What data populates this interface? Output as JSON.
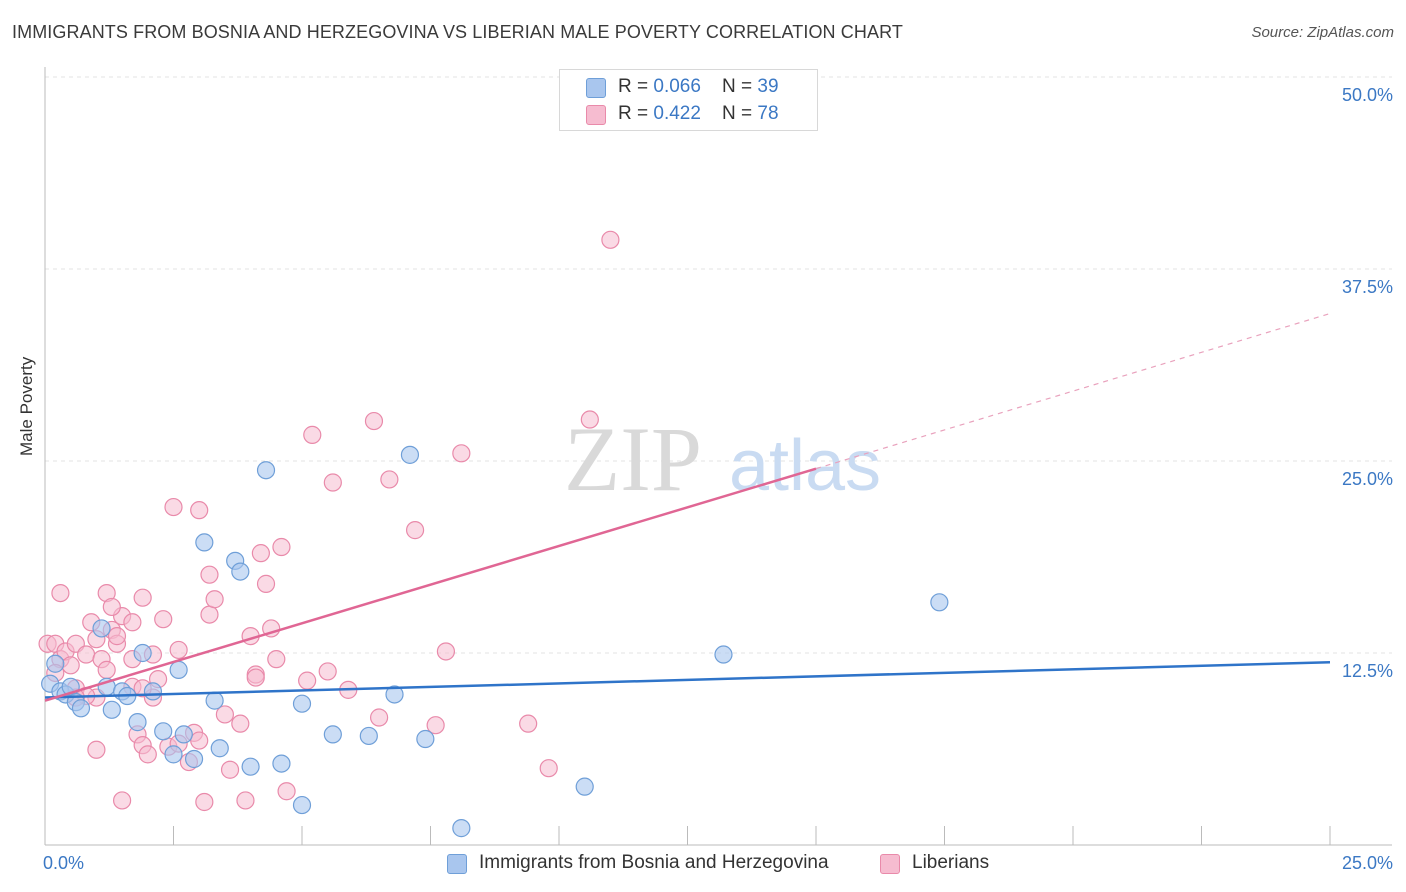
{
  "title": "IMMIGRANTS FROM BOSNIA AND HERZEGOVINA VS LIBERIAN MALE POVERTY CORRELATION CHART",
  "source": "Source: ZipAtlas.com",
  "watermark": {
    "zip": "ZIP",
    "atlas": "atlas"
  },
  "colors": {
    "blue_fill": "#a9c6ee",
    "blue_stroke": "#6f9fd8",
    "blue_line": "#2f74c9",
    "pink_fill": "#f6bcd0",
    "pink_stroke": "#e98aaa",
    "pink_line": "#e06694",
    "axis_label": "#3b78c4"
  },
  "legend": {
    "blue": {
      "r_label": "R = ",
      "r_value": "0.066",
      "n_label": "N = ",
      "n_value": "39"
    },
    "pink": {
      "r_label": "R = ",
      "r_value": "0.422",
      "n_label": "N = ",
      "n_value": "78"
    }
  },
  "chart_data": {
    "type": "scatter",
    "title": "IMMIGRANTS FROM BOSNIA AND HERZEGOVINA VS LIBERIAN MALE POVERTY CORRELATION CHART",
    "xlabel": "",
    "ylabel": "Male Poverty",
    "xlim": [
      0,
      25
    ],
    "ylim": [
      0,
      50
    ],
    "x_tick_labels": [
      "0.0%",
      "25.0%"
    ],
    "y_tick_labels": [
      "12.5%",
      "25.0%",
      "37.5%",
      "50.0%"
    ],
    "y_ticks": [
      12.5,
      25.0,
      37.5,
      50.0
    ],
    "grid": true,
    "series": [
      {
        "name": "Immigrants from Bosnia and Herzegovina",
        "color": "blue",
        "points": [
          [
            0.1,
            10.5
          ],
          [
            0.2,
            11.8
          ],
          [
            0.3,
            10.0
          ],
          [
            0.4,
            9.8
          ],
          [
            0.5,
            10.3
          ],
          [
            0.6,
            9.3
          ],
          [
            0.7,
            8.9
          ],
          [
            1.1,
            14.1
          ],
          [
            1.2,
            10.3
          ],
          [
            1.3,
            8.8
          ],
          [
            1.5,
            10.0
          ],
          [
            1.6,
            9.7
          ],
          [
            1.8,
            8.0
          ],
          [
            1.9,
            12.5
          ],
          [
            2.1,
            10.0
          ],
          [
            2.3,
            7.4
          ],
          [
            2.5,
            5.9
          ],
          [
            2.6,
            11.4
          ],
          [
            2.7,
            7.2
          ],
          [
            2.9,
            5.6
          ],
          [
            3.1,
            19.7
          ],
          [
            3.3,
            9.4
          ],
          [
            3.4,
            6.3
          ],
          [
            3.7,
            18.5
          ],
          [
            3.8,
            17.8
          ],
          [
            4.0,
            5.1
          ],
          [
            4.3,
            24.4
          ],
          [
            4.6,
            5.3
          ],
          [
            5.0,
            2.6
          ],
          [
            5.0,
            9.2
          ],
          [
            5.6,
            7.2
          ],
          [
            6.3,
            7.1
          ],
          [
            6.8,
            9.8
          ],
          [
            7.1,
            25.4
          ],
          [
            7.4,
            6.9
          ],
          [
            8.1,
            1.1
          ],
          [
            10.5,
            3.8
          ],
          [
            13.2,
            12.4
          ],
          [
            17.4,
            15.8
          ]
        ],
        "trend": {
          "x": [
            0,
            25
          ],
          "y": [
            9.6,
            11.9
          ]
        }
      },
      {
        "name": "Liberians",
        "color": "pink",
        "points": [
          [
            0.05,
            13.1
          ],
          [
            0.2,
            13.1
          ],
          [
            0.3,
            12.1
          ],
          [
            0.4,
            12.6
          ],
          [
            0.6,
            13.1
          ],
          [
            0.8,
            12.4
          ],
          [
            1.0,
            9.6
          ],
          [
            1.1,
            12.1
          ],
          [
            1.2,
            16.4
          ],
          [
            1.3,
            14.0
          ],
          [
            1.4,
            13.1
          ],
          [
            1.5,
            14.9
          ],
          [
            1.7,
            14.5
          ],
          [
            1.9,
            16.1
          ],
          [
            0.2,
            11.2
          ],
          [
            0.5,
            11.7
          ],
          [
            0.6,
            10.2
          ],
          [
            0.8,
            9.7
          ],
          [
            1.0,
            13.4
          ],
          [
            1.2,
            11.4
          ],
          [
            1.3,
            15.5
          ],
          [
            1.4,
            13.6
          ],
          [
            1.7,
            10.3
          ],
          [
            1.8,
            7.2
          ],
          [
            1.9,
            6.5
          ],
          [
            2.0,
            5.9
          ],
          [
            2.1,
            9.6
          ],
          [
            2.2,
            10.8
          ],
          [
            2.3,
            14.7
          ],
          [
            2.4,
            6.4
          ],
          [
            2.6,
            6.6
          ],
          [
            2.8,
            5.4
          ],
          [
            2.9,
            7.3
          ],
          [
            3.0,
            6.8
          ],
          [
            3.1,
            2.8
          ],
          [
            3.2,
            15.0
          ],
          [
            3.3,
            16.0
          ],
          [
            3.6,
            4.9
          ],
          [
            3.8,
            7.9
          ],
          [
            3.9,
            2.9
          ],
          [
            4.0,
            13.6
          ],
          [
            4.1,
            11.1
          ],
          [
            4.2,
            19.0
          ],
          [
            4.3,
            17.0
          ],
          [
            4.4,
            14.1
          ],
          [
            4.6,
            19.4
          ],
          [
            4.7,
            3.5
          ],
          [
            5.1,
            10.7
          ],
          [
            5.2,
            26.7
          ],
          [
            5.5,
            11.3
          ],
          [
            5.6,
            23.6
          ],
          [
            5.9,
            10.1
          ],
          [
            6.4,
            27.6
          ],
          [
            6.7,
            23.8
          ],
          [
            7.2,
            20.5
          ],
          [
            7.6,
            7.8
          ],
          [
            7.8,
            12.6
          ],
          [
            8.1,
            25.5
          ],
          [
            9.4,
            7.9
          ],
          [
            9.8,
            5.0
          ],
          [
            10.6,
            27.7
          ],
          [
            11.0,
            39.4
          ],
          [
            3.0,
            21.8
          ],
          [
            3.2,
            17.6
          ],
          [
            2.5,
            22.0
          ],
          [
            0.6,
            9.6
          ],
          [
            1.0,
            6.2
          ],
          [
            1.5,
            2.9
          ],
          [
            1.9,
            10.2
          ],
          [
            2.1,
            12.4
          ],
          [
            2.6,
            12.7
          ],
          [
            3.5,
            8.5
          ],
          [
            4.1,
            10.9
          ],
          [
            4.5,
            12.1
          ],
          [
            0.3,
            16.4
          ],
          [
            0.9,
            14.5
          ],
          [
            1.7,
            12.1
          ],
          [
            6.5,
            8.3
          ]
        ],
        "trend": {
          "x": [
            0,
            15
          ],
          "y": [
            9.4,
            24.5
          ]
        },
        "trend_extension": {
          "x": [
            15,
            25
          ],
          "y": [
            24.5,
            34.6
          ]
        }
      }
    ]
  },
  "bottom_legend": {
    "blue_label": "Immigrants from Bosnia and Herzegovina",
    "pink_label": "Liberians"
  }
}
